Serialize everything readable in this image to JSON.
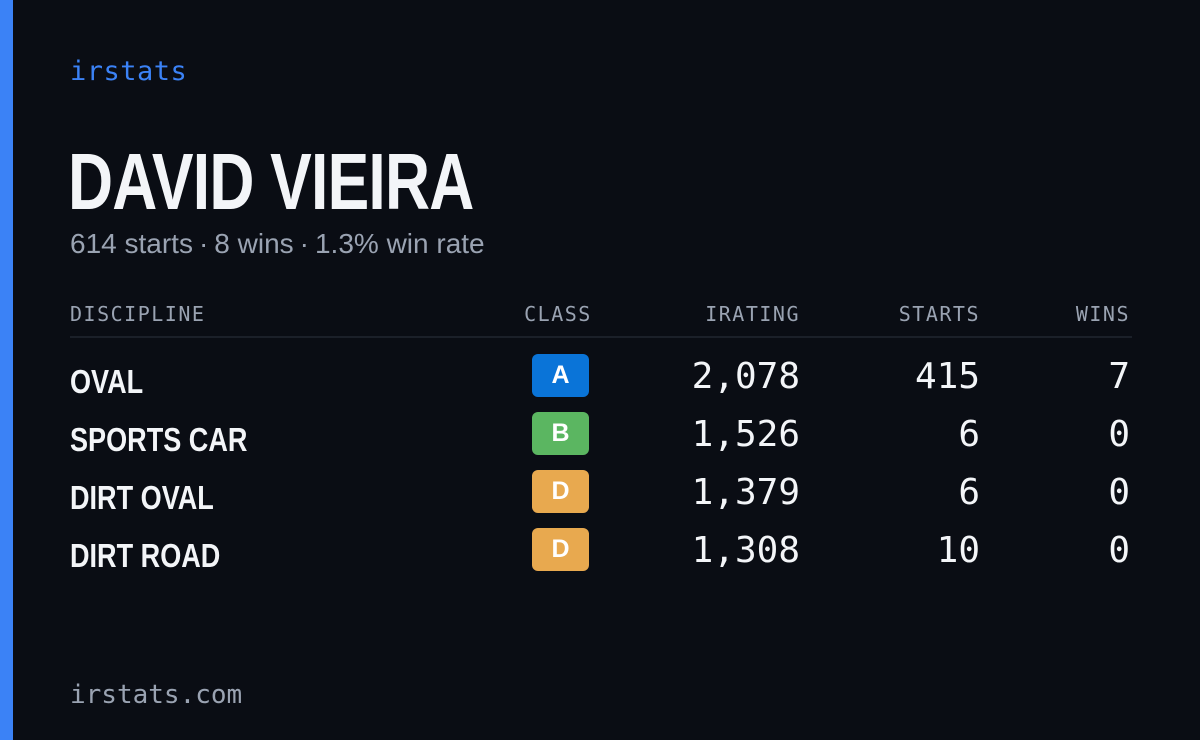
{
  "brand": "irstats",
  "driver": {
    "name": "DAVID VIEIRA",
    "starts": "614 starts",
    "wins": "8 wins",
    "win_rate": "1.3% win rate",
    "separator": "·"
  },
  "table": {
    "headers": {
      "discipline": "DISCIPLINE",
      "class": "CLASS",
      "irating": "IRATING",
      "starts": "STARTS",
      "wins": "WINS"
    },
    "rows": [
      {
        "discipline": "OVAL",
        "class": "A",
        "class_color": "#0a74d8",
        "irating": "2,078",
        "starts": "415",
        "wins": "7"
      },
      {
        "discipline": "SPORTS CAR",
        "class": "B",
        "class_color": "#5bb661",
        "irating": "1,526",
        "starts": "6",
        "wins": "0"
      },
      {
        "discipline": "DIRT OVAL",
        "class": "D",
        "class_color": "#e8a94f",
        "irating": "1,379",
        "starts": "6",
        "wins": "0"
      },
      {
        "discipline": "DIRT ROAD",
        "class": "D",
        "class_color": "#e8a94f",
        "irating": "1,308",
        "starts": "10",
        "wins": "0"
      }
    ]
  },
  "footer": "irstats.com",
  "colors": {
    "background": "#0a0d14",
    "accent": "#3b82f6",
    "text": "#f3f5f8",
    "muted": "#9aa3b2"
  }
}
